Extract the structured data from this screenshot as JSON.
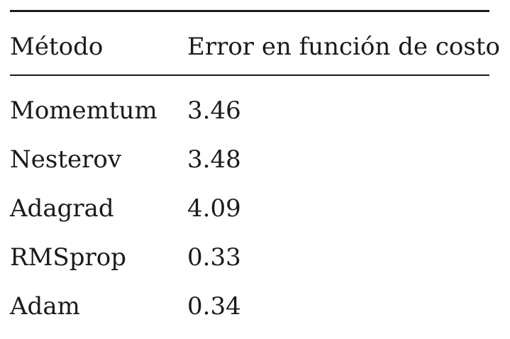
{
  "table": {
    "columns": [
      "Método",
      "Error en función de costo"
    ],
    "rows": [
      {
        "method": "Momemtum",
        "error": "3.46"
      },
      {
        "method": "Nesterov",
        "error": "3.48"
      },
      {
        "method": "Adagrad",
        "error": "4.09"
      },
      {
        "method": "RMSprop",
        "error": "0.33"
      },
      {
        "method": "Adam",
        "error": "0.34"
      }
    ]
  }
}
